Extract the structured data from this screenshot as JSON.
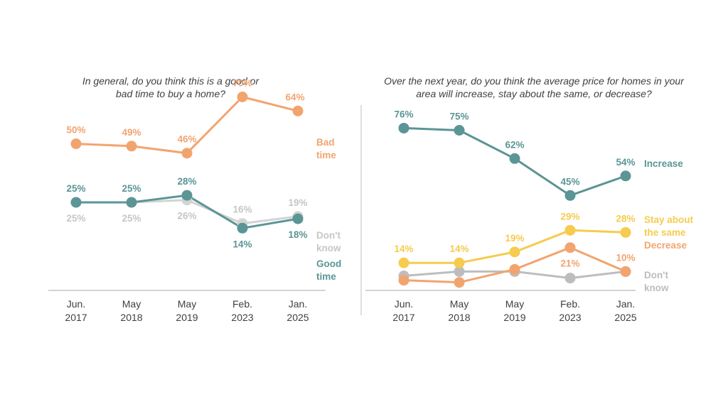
{
  "chart_data": [
    {
      "type": "line",
      "title": "In general, do you think this is a good or bad time to buy a home?",
      "title_lines": [
        "In general, do you think this is a good or",
        "bad time to buy a home?"
      ],
      "categories": [
        "Jun. 2017",
        "May 2018",
        "May 2019",
        "Feb. 2023",
        "Jan. 2025"
      ],
      "category_lines": [
        [
          "Jun.",
          "2017"
        ],
        [
          "May",
          "2018"
        ],
        [
          "May",
          "2019"
        ],
        [
          "Feb.",
          "2023"
        ],
        [
          "Jan.",
          "2025"
        ]
      ],
      "ylim": [
        0,
        100
      ],
      "grid": false,
      "series": [
        {
          "name": "Bad time",
          "label_lines": [
            "Bad",
            "time"
          ],
          "color": "#F2A46F",
          "values": [
            50,
            49,
            46,
            70,
            64
          ],
          "labels": [
            "50%",
            "49%",
            "46%",
            "70%",
            "64%"
          ],
          "label_pos": [
            "above",
            "above",
            "above",
            "above",
            "above"
          ]
        },
        {
          "name": "Good time",
          "label_lines": [
            "Good",
            "time"
          ],
          "color": "#5B9595",
          "values": [
            25,
            25,
            28,
            14,
            18
          ],
          "labels": [
            "25%",
            "25%",
            "28%",
            "14%",
            "18%"
          ],
          "label_pos": [
            "above",
            "above",
            "above",
            "below",
            "below"
          ]
        },
        {
          "name": "Don't know",
          "label_lines": [
            "Don't",
            "know"
          ],
          "color": "#D3D3D3",
          "values": [
            25,
            25,
            26,
            16,
            19
          ],
          "labels": [
            "25%",
            "25%",
            "26%",
            "16%",
            "19%"
          ],
          "label_pos": [
            "below",
            "below",
            "below",
            "above",
            "above"
          ]
        }
      ]
    },
    {
      "type": "line",
      "title": "Over the next year, do you think the average price for homes in your area will increase, stay about the same, or decrease?",
      "title_lines": [
        "Over the next year, do you think the average price for homes in your",
        "area will increase, stay about the same, or decrease?"
      ],
      "categories": [
        "Jun. 2017",
        "May 2018",
        "May 2019",
        "Feb. 2023",
        "Jan. 2025"
      ],
      "category_lines": [
        [
          "Jun.",
          "2017"
        ],
        [
          "May",
          "2018"
        ],
        [
          "May",
          "2019"
        ],
        [
          "Feb.",
          "2023"
        ],
        [
          "Jan.",
          "2025"
        ]
      ],
      "ylim": [
        0,
        100
      ],
      "grid": false,
      "series": [
        {
          "name": "Increase",
          "label_lines": [
            "Increase"
          ],
          "color": "#5B9595",
          "values": [
            76,
            75,
            62,
            45,
            54
          ],
          "labels": [
            "76%",
            "75%",
            "62%",
            "45%",
            "54%"
          ],
          "label_pos": [
            "above",
            "above",
            "above",
            "above",
            "above"
          ]
        },
        {
          "name": "Stay about the same",
          "label_lines": [
            "Stay about",
            "the same"
          ],
          "color": "#F6CB4E",
          "values": [
            14,
            14,
            19,
            29,
            28
          ],
          "labels": [
            "14%",
            "14%",
            "19%",
            "29%",
            "28%"
          ],
          "label_pos": [
            "above",
            "above",
            "above",
            "above",
            "above"
          ]
        },
        {
          "name": "Decrease",
          "label_lines": [
            "Decrease"
          ],
          "color": "#F2A46F",
          "values": [
            6,
            5,
            11,
            21,
            10
          ],
          "labels": [
            "",
            "",
            "",
            "21%",
            "10%"
          ],
          "label_pos": [
            "below",
            "below",
            "below",
            "below",
            "above"
          ]
        },
        {
          "name": "Don't know",
          "label_lines": [
            "Don't",
            "know"
          ],
          "color": "#BDBDBD",
          "values": [
            8,
            10,
            10,
            7,
            10
          ],
          "labels": [
            "",
            "",
            "",
            "",
            ""
          ],
          "label_pos": [
            "below",
            "below",
            "below",
            "below",
            "below"
          ]
        }
      ]
    }
  ]
}
